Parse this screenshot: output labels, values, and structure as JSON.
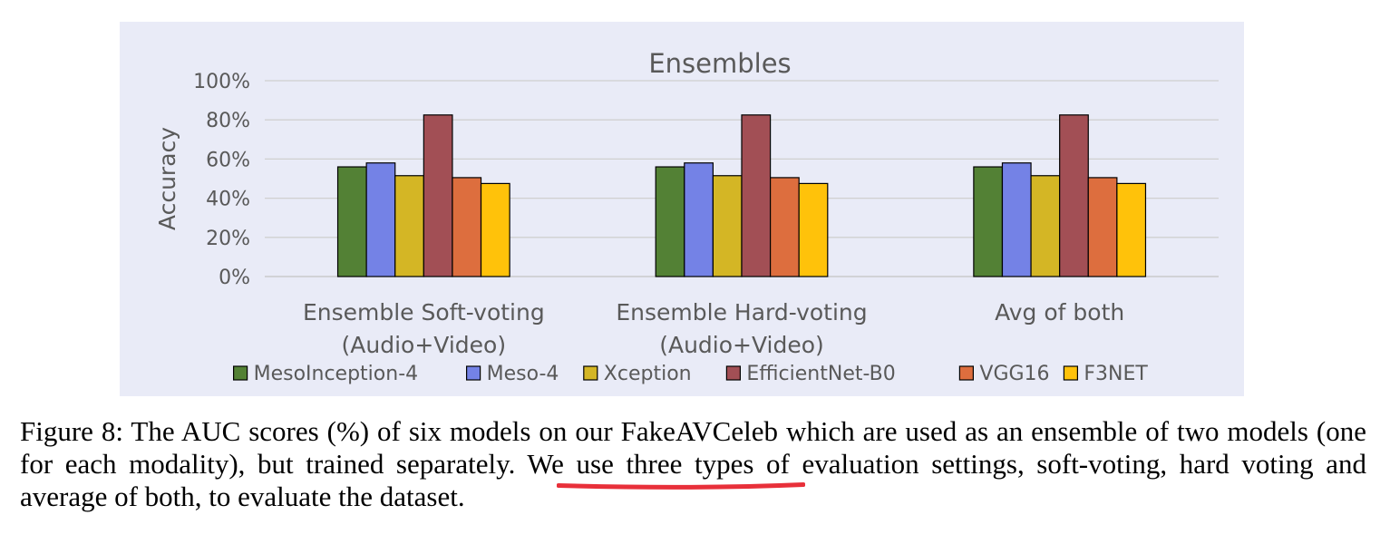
{
  "chart_data": {
    "type": "bar",
    "title": "Ensembles",
    "ylabel": "Accuracy",
    "xlabel": "",
    "ylim": [
      0,
      100
    ],
    "yticks": [
      "0%",
      "20%",
      "40%",
      "60%",
      "80%",
      "100%"
    ],
    "yticks_values": [
      0,
      20,
      40,
      60,
      80,
      100
    ],
    "grid": true,
    "legend_position": "bottom",
    "categories": [
      [
        "Ensemble Soft-voting",
        "(Audio+Video)"
      ],
      [
        "Ensemble Hard-voting",
        "(Audio+Video)"
      ],
      [
        "Avg of both"
      ]
    ],
    "series": [
      {
        "name": "MesoInception-4",
        "color": "#538135",
        "values": [
          56,
          56,
          56
        ]
      },
      {
        "name": "Meso-4",
        "color": "#7482e6",
        "values": [
          58,
          58,
          58
        ]
      },
      {
        "name": "Xception",
        "color": "#d4b625",
        "values": [
          51.5,
          51.5,
          51.5
        ]
      },
      {
        "name": "EfficientNet-B0",
        "color": "#a24f55",
        "values": [
          82.5,
          82.5,
          82.5
        ]
      },
      {
        "name": "VGG16",
        "color": "#dd6e3e",
        "values": [
          50.5,
          50.5,
          50.5
        ]
      },
      {
        "name": "F3NET",
        "color": "#ffc20a",
        "values": [
          47.5,
          47.5,
          47.5
        ]
      }
    ]
  },
  "caption": {
    "text": "Figure 8: The AUC scores (%) of six models on our FakeAVCeleb  which are used as an ensemble of two models (one for each modality), but trained separately. We use three types of evaluation settings, soft-voting, hard voting and average of both, to evaluate the dataset."
  },
  "colors": {
    "panel_background": "#e9ebf7",
    "underline_annotation": "#e8303a"
  }
}
